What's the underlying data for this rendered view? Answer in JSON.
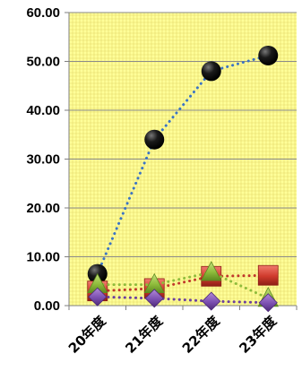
{
  "chart_data": {
    "type": "line",
    "title": "",
    "xlabel": "",
    "ylabel": "",
    "categories": [
      "20年度",
      "21年度",
      "22年度",
      "23年度"
    ],
    "ylim": [
      0,
      60
    ],
    "y_ticks": [
      0,
      10,
      20,
      30,
      40,
      50,
      60
    ],
    "y_tick_labels": [
      "0.00",
      "10.00",
      "20.00",
      "30.00",
      "40.00",
      "50.00",
      "60.00"
    ],
    "grid": true,
    "legend": "none",
    "plot_background": "#ffff99",
    "series": [
      {
        "values": [
          6.5,
          34,
          48,
          51.2
        ],
        "color": "#3b74c4",
        "marker": "circle",
        "marker_color": "#000000"
      },
      {
        "values": [
          3,
          3.5,
          6,
          6.2
        ],
        "color": "#c0392b",
        "marker": "square",
        "marker_color": "#c0392b"
      },
      {
        "values": [
          4.3,
          4.3,
          6.8,
          1.5
        ],
        "color": "#8fbc3c",
        "marker": "triangle",
        "marker_color": "#8fbc3c"
      },
      {
        "values": [
          1.8,
          1.5,
          0.9,
          0.6
        ],
        "color": "#6b3fa0",
        "marker": "diamond",
        "marker_color": "#7b4fb0"
      }
    ]
  }
}
